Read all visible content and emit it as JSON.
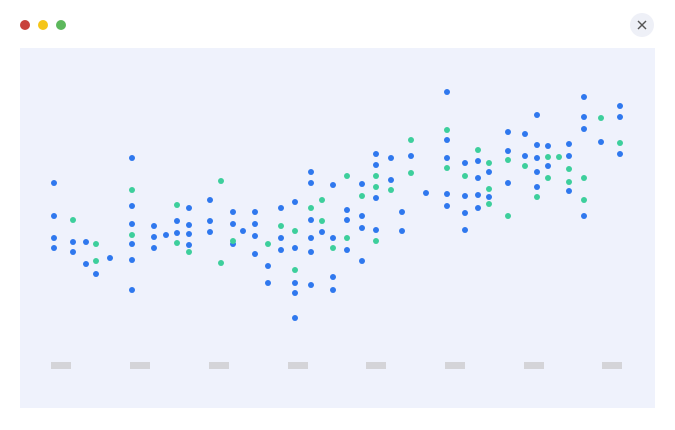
{
  "chart_data": {
    "type": "scatter",
    "xlim": [
      20,
      655
    ],
    "ylim": [
      0,
      360
    ],
    "series": [
      {
        "color": "#2f78ee",
        "x": [
          54,
          54,
          54,
          54,
          73,
          73,
          86,
          86,
          96,
          110,
          132,
          132,
          132,
          132,
          132,
          132,
          154,
          154,
          154,
          166,
          177,
          177,
          189,
          189,
          189,
          189,
          210,
          210,
          210,
          233,
          233,
          233,
          243,
          255,
          255,
          255,
          255,
          268,
          268,
          281,
          281,
          281,
          295,
          295,
          295,
          295,
          295,
          311,
          311,
          311,
          311,
          311,
          311,
          322,
          333,
          333,
          333,
          333,
          347,
          347,
          347,
          362,
          362,
          362,
          362,
          376,
          376,
          376,
          376,
          391,
          391,
          402,
          402,
          411,
          426,
          447,
          447,
          447,
          447,
          447,
          465,
          465,
          465,
          465,
          478,
          478,
          478,
          478,
          489,
          489,
          508,
          508,
          508,
          525,
          525,
          537,
          537,
          537,
          537,
          537,
          548,
          548,
          569,
          569,
          569,
          584,
          584,
          584,
          584,
          601,
          620,
          620,
          620
        ],
        "values": [
          225,
          192,
          170,
          160,
          166,
          156,
          166,
          144,
          134,
          150,
          250,
          202,
          184,
          164,
          148,
          118,
          182,
          171,
          160,
          173,
          187,
          175,
          200,
          183,
          174,
          163,
          208,
          187,
          176,
          196,
          184,
          164,
          177,
          196,
          184,
          172,
          154,
          142,
          125,
          200,
          170,
          158,
          206,
          160,
          125,
          115,
          90,
          236,
          225,
          188,
          170,
          156,
          123,
          176,
          223,
          170,
          131,
          118,
          198,
          188,
          158,
          224,
          192,
          180,
          147,
          254,
          243,
          210,
          178,
          250,
          228,
          196,
          177,
          252,
          215,
          316,
          268,
          250,
          214,
          202,
          245,
          212,
          195,
          178,
          247,
          230,
          213,
          200,
          236,
          211,
          276,
          257,
          225,
          274,
          252,
          293,
          263,
          250,
          236,
          221,
          262,
          242,
          264,
          252,
          217,
          311,
          291,
          279,
          192,
          266,
          302,
          291,
          254
        ]
      },
      {
        "color": "#3dcf9c",
        "x": [
          73,
          96,
          96,
          132,
          132,
          177,
          177,
          189,
          221,
          221,
          233,
          268,
          281,
          295,
          295,
          311,
          322,
          322,
          333,
          347,
          347,
          362,
          376,
          376,
          376,
          391,
          411,
          411,
          447,
          447,
          465,
          478,
          489,
          489,
          489,
          508,
          508,
          525,
          537,
          548,
          548,
          559,
          569,
          569,
          584,
          584,
          601,
          620
        ],
        "values": [
          188,
          164,
          147,
          218,
          173,
          203,
          165,
          156,
          227,
          145,
          167,
          164,
          182,
          177,
          138,
          200,
          208,
          187,
          160,
          232,
          170,
          212,
          232,
          221,
          167,
          218,
          268,
          235,
          278,
          240,
          232,
          258,
          245,
          219,
          204,
          248,
          192,
          242,
          211,
          251,
          230,
          251,
          239,
          226,
          230,
          208,
          290,
          265
        ]
      }
    ]
  }
}
